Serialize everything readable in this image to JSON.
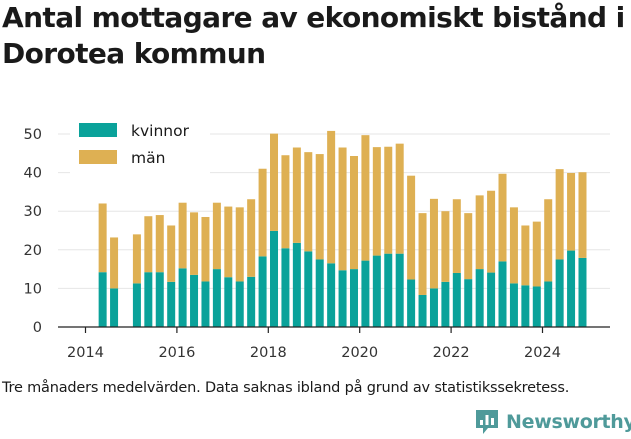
{
  "title": "Antal mottagare av ekonomiskt bistånd i Dorotea kommun",
  "note": "Tre månaders medelvärden. Data saknas ibland på grund av statistikssekretess.",
  "brand": {
    "name": "Newsworthy",
    "icon": "bar-chart-logo-icon",
    "color": "#4f9a9a"
  },
  "chart_data": {
    "type": "bar",
    "stacked": true,
    "x_unit": "quarter",
    "x": [
      "2014-Q2",
      "2014-Q3",
      "2014-Q4",
      "2015-Q1",
      "2015-Q2",
      "2015-Q3",
      "2015-Q4",
      "2016-Q1",
      "2016-Q2",
      "2016-Q3",
      "2016-Q4",
      "2017-Q1",
      "2017-Q2",
      "2017-Q3",
      "2017-Q4",
      "2018-Q1",
      "2018-Q2",
      "2018-Q3",
      "2018-Q4",
      "2019-Q1",
      "2019-Q2",
      "2019-Q3",
      "2019-Q4",
      "2020-Q1",
      "2020-Q2",
      "2020-Q3",
      "2020-Q4",
      "2021-Q1",
      "2021-Q2",
      "2021-Q3",
      "2021-Q4",
      "2022-Q1",
      "2022-Q2",
      "2022-Q3",
      "2022-Q4",
      "2023-Q1",
      "2023-Q2",
      "2023-Q3",
      "2023-Q4",
      "2024-Q1",
      "2024-Q2",
      "2024-Q3",
      "2024-Q4"
    ],
    "series": [
      {
        "name": "kvinnor",
        "color": "#0aa29a",
        "values": [
          14.2,
          10,
          null,
          11.3,
          14.2,
          14.2,
          11.7,
          15.2,
          13.5,
          11.8,
          15,
          12.9,
          11.8,
          13,
          18.3,
          24.9,
          20.4,
          21.8,
          19.6,
          17.5,
          16.5,
          14.7,
          15,
          17.2,
          18.5,
          19,
          19,
          12.3,
          8.3,
          10,
          11.7,
          14,
          12.4,
          15,
          14.1,
          17,
          11.3,
          10.8,
          10.5,
          11.8,
          17.5,
          19.8,
          17.9
        ]
      },
      {
        "name": "män",
        "color": "#deb053",
        "values": [
          17.8,
          13.2,
          null,
          12.7,
          14.5,
          14.8,
          14.6,
          17,
          16.2,
          16.7,
          17.2,
          18.3,
          19.2,
          20.1,
          22.7,
          25.2,
          24.1,
          24.7,
          25.7,
          27.3,
          34.3,
          31.8,
          29.3,
          32.5,
          28.1,
          27.7,
          28.5,
          26.9,
          21.2,
          23.2,
          18.3,
          19.1,
          17.1,
          19.1,
          21.2,
          22.7,
          19.7,
          15.5,
          16.8,
          21.3,
          23.4,
          20.1,
          22.2
        ]
      }
    ],
    "x_ticks": [
      "2014",
      "2016",
      "2018",
      "2020",
      "2022",
      "2024"
    ],
    "y_ticks": [
      0,
      10,
      20,
      30,
      40,
      50
    ],
    "ylim": [
      0,
      53
    ],
    "legend": {
      "placement": "top-left",
      "entries": [
        "kvinnor",
        "män"
      ]
    },
    "grid": {
      "y": true,
      "x": false,
      "color": "#e6e6e6"
    }
  }
}
